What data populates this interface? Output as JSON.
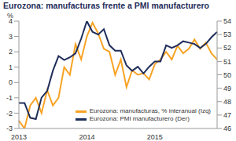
{
  "chart_data": {
    "type": "line",
    "title": "Eurozona: manufacturas frente a PMI manufacturero",
    "ylabel": "%",
    "categories": [
      "2013",
      null,
      null,
      null,
      null,
      null,
      null,
      null,
      null,
      null,
      null,
      null,
      "2014",
      null,
      null,
      null,
      null,
      null,
      null,
      null,
      null,
      null,
      null,
      null,
      "2015",
      null,
      null,
      null,
      null,
      null,
      null,
      null,
      null,
      null,
      null,
      null
    ],
    "series": [
      {
        "name": "Eurozona: manufacturas, % interanual (Izq)",
        "color": "#f7a325",
        "axis": "y",
        "marker": "none",
        "line_style": "solid",
        "values": [
          -2.5,
          -3,
          -1.5,
          -1,
          -2,
          -0.5,
          -1.5,
          -1,
          1,
          0.5,
          2.5,
          1.5,
          3,
          3.9,
          3.2,
          2.2,
          2,
          0.5,
          1.5,
          -0.3,
          0.8,
          0.5,
          0.6,
          0.2,
          1.2,
          1.5,
          2,
          1.5,
          2.4,
          1.9,
          2.2,
          2.8,
          2.2,
          2.6,
          1.9,
          1.5
        ]
      },
      {
        "name": "Eurozona: PMI manufacturero (Der)",
        "color": "#1f2d5a",
        "axis": "y2",
        "marker": "none",
        "line_style": "solid",
        "values": [
          47.9,
          47.9,
          46.8,
          46.7,
          48.3,
          48.8,
          50.3,
          51.4,
          51.1,
          51.3,
          51.6,
          52.7,
          54,
          53.2,
          53,
          53.4,
          52.2,
          51.8,
          51.8,
          50.7,
          50.3,
          50.6,
          50.1,
          50.6,
          51,
          51,
          52.2,
          52,
          52.2,
          52.5,
          52.4,
          52.3,
          52,
          52.3,
          52.8,
          53.2
        ]
      }
    ],
    "ylim": [
      -3,
      4
    ],
    "yticks": [
      -3,
      -2,
      -1,
      0,
      1,
      2,
      3,
      4
    ],
    "y2lim": [
      46,
      54
    ],
    "y2ticks": [
      46,
      47,
      48,
      49,
      50,
      51,
      52,
      53,
      54
    ],
    "grid": false,
    "legend": "lower right"
  }
}
